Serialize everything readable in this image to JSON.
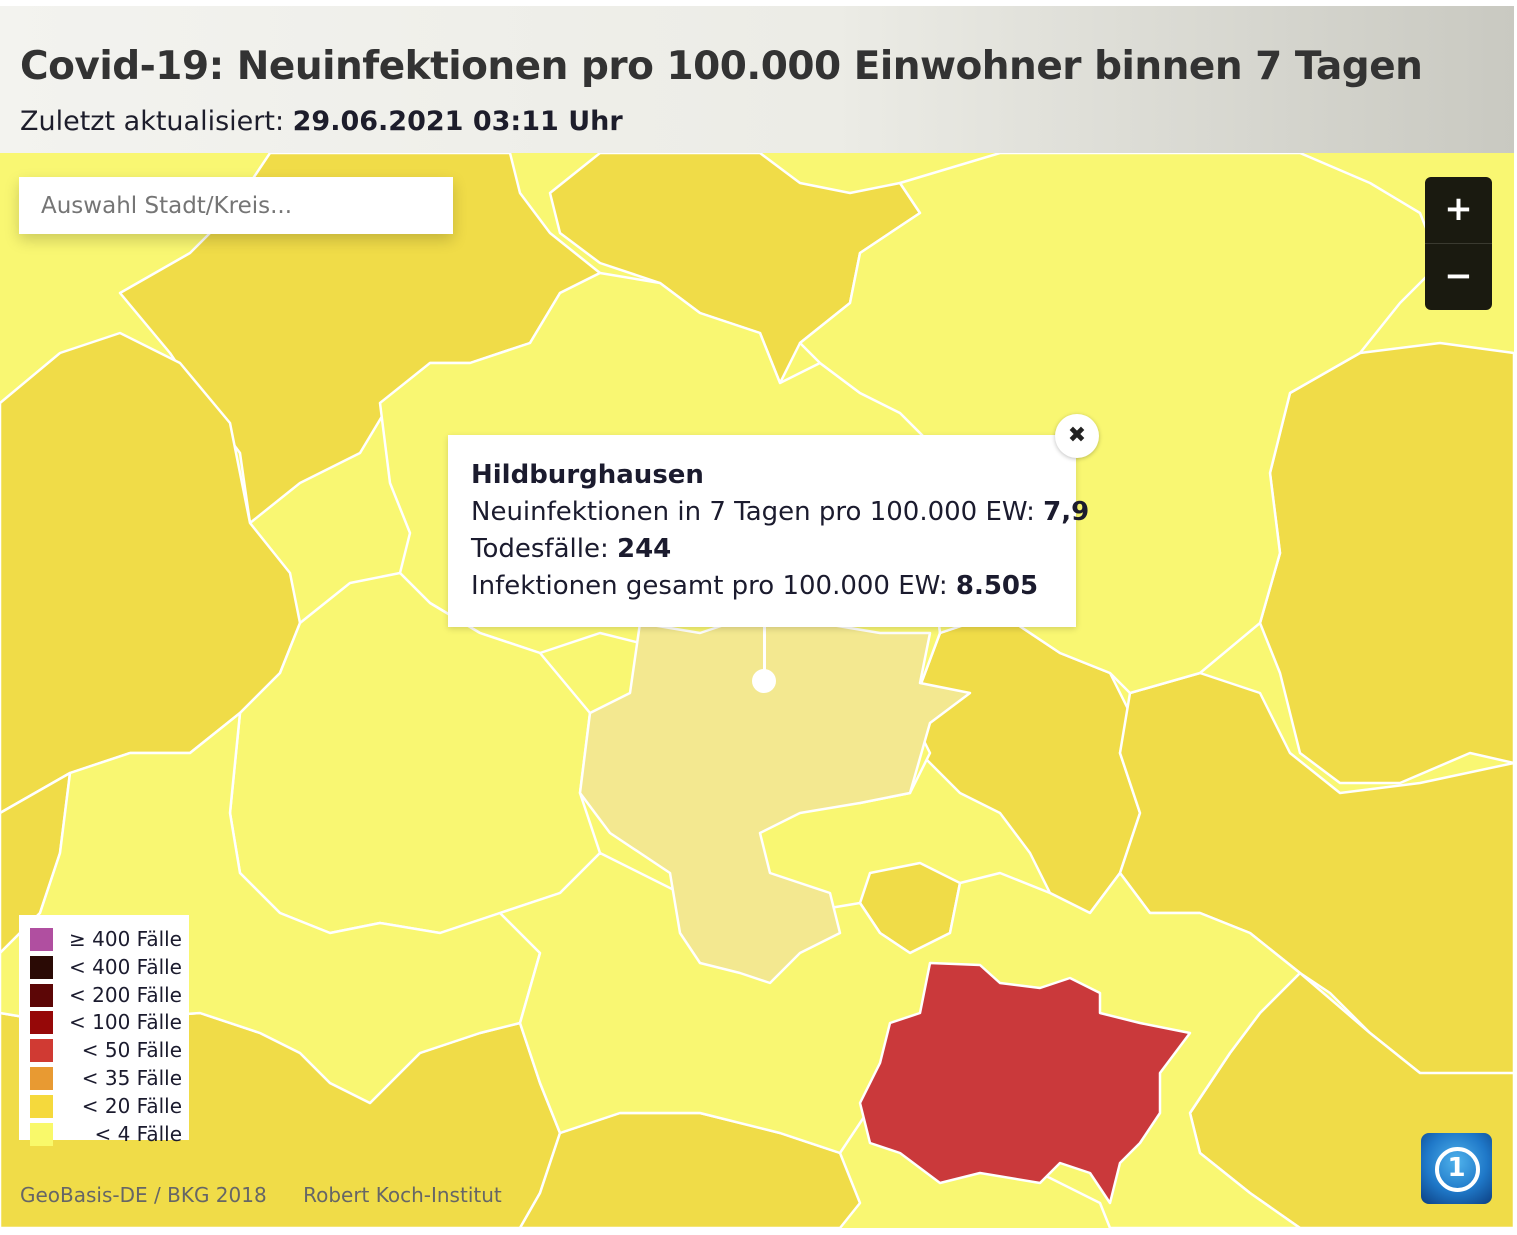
{
  "header": {
    "title": "Covid-19: Neuinfektionen pro 100.000 Einwohner binnen 7 Tagen",
    "updated_label": "Zuletzt aktualisiert:",
    "updated_value": "29.06.2021 03:11 Uhr"
  },
  "search": {
    "placeholder": "Auswahl Stadt/Kreis..."
  },
  "zoom": {
    "in_label": "+",
    "out_label": "−"
  },
  "popup": {
    "name": "Hildburghausen",
    "incidence_label": "Neuinfektionen in 7 Tagen pro 100.000 EW:",
    "incidence_value": "7,9",
    "deaths_label": "Todesfälle:",
    "deaths_value": "244",
    "total_label": "Infektionen gesamt pro 100.000 EW:",
    "total_value": "8.505",
    "close_label": "✖"
  },
  "legend": [
    {
      "label": "≥ 400 Fälle",
      "color": "#b04fa0"
    },
    {
      "label": "< 400 Fälle",
      "color": "#2a0a05"
    },
    {
      "label": "< 200 Fälle",
      "color": "#5c0606"
    },
    {
      "label": "< 100 Fälle",
      "color": "#960808"
    },
    {
      "label": "< 50 Fälle",
      "color": "#d03a33"
    },
    {
      "label": "< 35 Fälle",
      "color": "#e89a32"
    },
    {
      "label": "< 20 Fälle",
      "color": "#f5d93c"
    },
    {
      "label": "< 4 Fälle",
      "color": "#f9f96a"
    }
  ],
  "region_colors": {
    "lt4": "#f9f772",
    "lt20": "#f0dc48",
    "selected": "#f3e890",
    "lt50": "#ca393b",
    "border": "#ffffff"
  },
  "credits": {
    "geobasis": "GeoBasis-DE / BKG 2018",
    "rki": "Robert Koch-Institut"
  },
  "logo": {
    "label": "1"
  }
}
